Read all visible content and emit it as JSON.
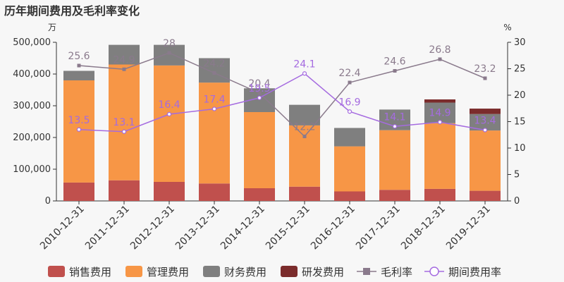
{
  "title": "历年期间费用及毛利率变化",
  "chart_data": {
    "type": "bar",
    "title": "历年期间费用及毛利率变化",
    "left_axis_unit": "万",
    "right_axis_unit": "%",
    "left_ylim": [
      0,
      500000
    ],
    "right_ylim": [
      0,
      30
    ],
    "left_ticks": [
      "0",
      "100,000",
      "200,000",
      "300,000",
      "400,000",
      "500,000"
    ],
    "right_ticks": [
      "0",
      "5",
      "10",
      "15",
      "20",
      "25",
      "30"
    ],
    "grid": false,
    "legend_position": "bottom",
    "categories": [
      "2010-12-31",
      "2011-12-31",
      "2012-12-31",
      "2013-12-31",
      "2014-12-31",
      "2015-12-31",
      "2016-12-31",
      "2017-12-31",
      "2018-12-31",
      "2019-12-31"
    ],
    "bar_series": [
      {
        "name": "销售费用",
        "color": "#c0504d",
        "values": [
          58000,
          65000,
          60000,
          55000,
          40000,
          45000,
          30000,
          35000,
          38000,
          32000
        ]
      },
      {
        "name": "管理费用",
        "color": "#f79646",
        "values": [
          322000,
          365000,
          367000,
          318000,
          240000,
          193000,
          142000,
          188000,
          207000,
          190000
        ]
      },
      {
        "name": "财务费用",
        "color": "#7f7f7f",
        "values": [
          30000,
          62000,
          65000,
          77000,
          75000,
          65000,
          58000,
          65000,
          65000,
          52000
        ]
      },
      {
        "name": "研发费用",
        "color": "#7b2c2c",
        "values": [
          0,
          0,
          0,
          0,
          0,
          0,
          0,
          0,
          10000,
          17000
        ]
      }
    ],
    "line_series": [
      {
        "name": "毛利率",
        "color": "#8a7a8c",
        "marker": "square",
        "values": [
          25.6,
          24.9,
          28,
          24.2,
          20.4,
          12.2,
          22.4,
          24.6,
          26.8,
          23.2
        ],
        "labels": [
          "25.6",
          "24.9",
          "28",
          "24.2",
          "20.4",
          "12.2",
          "22.4",
          "24.6",
          "26.8",
          "23.2"
        ]
      },
      {
        "name": "期间费用率",
        "color": "#a56be0",
        "marker": "circle",
        "values": [
          13.5,
          13.1,
          16.4,
          17.4,
          19.5,
          24.1,
          16.9,
          14.1,
          14.9,
          13.4
        ],
        "labels": [
          "13.5",
          "13.1",
          "16.4",
          "17.4",
          "19.5",
          "24.1",
          "16.9",
          "14.1",
          "14.9",
          "13.4"
        ]
      }
    ]
  }
}
